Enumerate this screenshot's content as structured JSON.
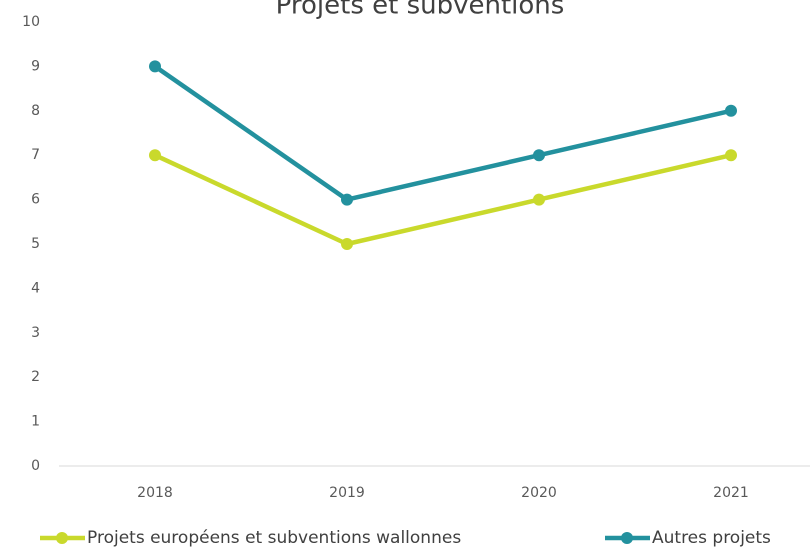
{
  "chart_data": {
    "type": "line",
    "title": "Projets et subventions",
    "categories": [
      "2018",
      "2019",
      "2020",
      "2021"
    ],
    "series": [
      {
        "name": "Projets européens et subventions wallonnes",
        "color": "#c9d92c",
        "values": [
          7,
          5,
          6,
          7
        ]
      },
      {
        "name": "Autres projets",
        "color": "#23919e",
        "values": [
          9,
          6,
          7,
          8
        ]
      }
    ],
    "ylim": [
      0,
      10
    ],
    "yticks": [
      0,
      1,
      2,
      3,
      4,
      5,
      6,
      7,
      8,
      9,
      10
    ],
    "grid": false,
    "legend": "bottom"
  }
}
